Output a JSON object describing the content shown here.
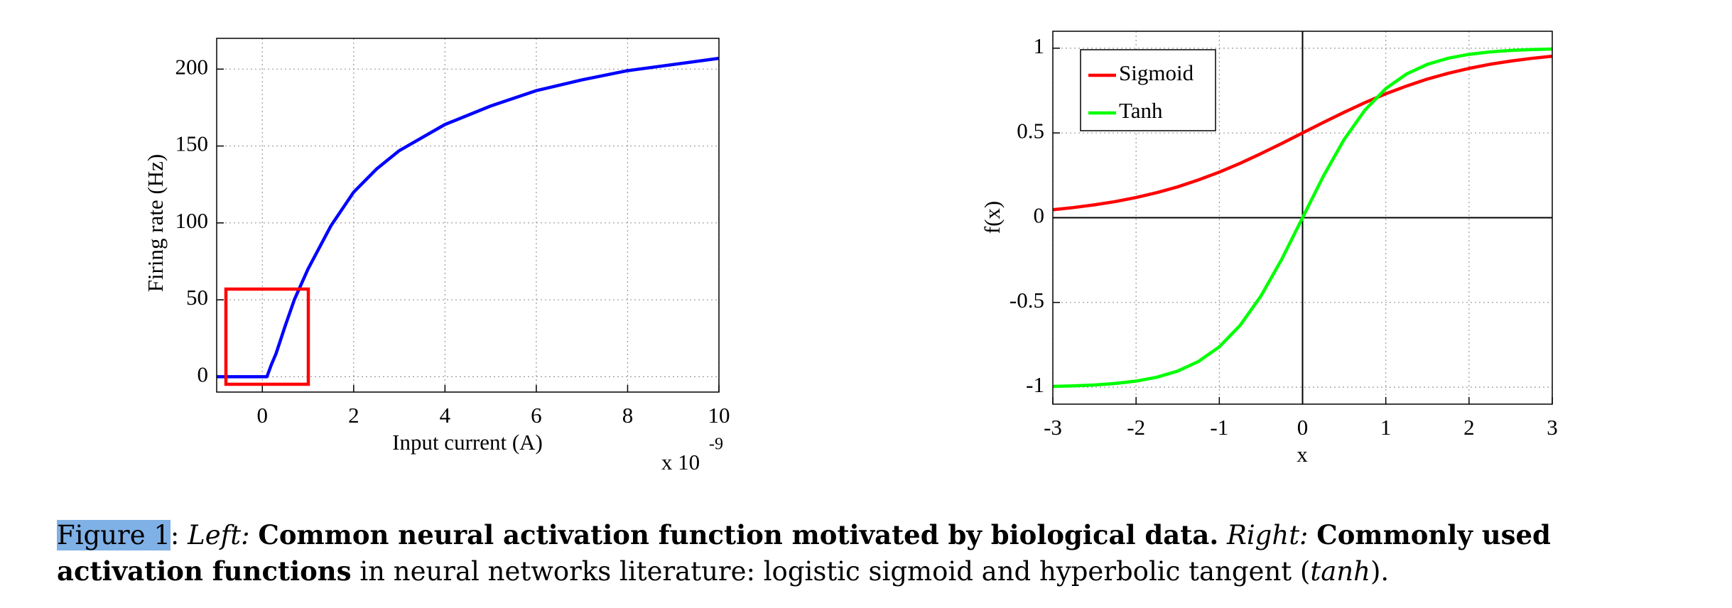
{
  "chart_data": [
    {
      "type": "line",
      "ylabel": "Firing rate (Hz)",
      "xlabel": "Input current (A)",
      "x_multiplier": "x 10",
      "x_exponent": "-9",
      "x": [
        -1,
        -0.5,
        0,
        0.1,
        0.2,
        0.3,
        0.5,
        0.7,
        1,
        1.5,
        2,
        2.5,
        3,
        4,
        5,
        6,
        7,
        8,
        9,
        10
      ],
      "values": [
        0,
        0,
        0,
        0,
        8,
        15,
        33,
        50,
        70,
        98,
        120,
        135,
        147,
        164,
        176,
        186,
        193,
        199,
        203,
        207
      ],
      "color": "#0000ff",
      "xlim": [
        -1,
        10
      ],
      "xticks": [
        0,
        2,
        4,
        6,
        8,
        10
      ],
      "ylim": [
        -10,
        220
      ],
      "yticks": [
        0,
        50,
        100,
        150,
        200
      ],
      "grid": true
    },
    {
      "type": "line",
      "ylabel": "f(x)",
      "xlabel": "x",
      "x": [
        -3,
        -2.75,
        -2.5,
        -2.25,
        -2,
        -1.75,
        -1.5,
        -1.25,
        -1,
        -0.75,
        -0.5,
        -0.25,
        0,
        0.25,
        0.5,
        0.75,
        1,
        1.25,
        1.5,
        1.75,
        2,
        2.25,
        2.5,
        2.75,
        3
      ],
      "series": [
        {
          "name": "Sigmoid",
          "color": "#ff0000",
          "values": [
            0.047,
            0.06,
            0.076,
            0.095,
            0.119,
            0.148,
            0.182,
            0.223,
            0.269,
            0.321,
            0.378,
            0.438,
            0.5,
            0.562,
            0.622,
            0.679,
            0.731,
            0.777,
            0.818,
            0.852,
            0.881,
            0.905,
            0.924,
            0.94,
            0.953
          ]
        },
        {
          "name": "Tanh",
          "color": "#00ff00",
          "values": [
            -0.995,
            -0.992,
            -0.987,
            -0.978,
            -0.964,
            -0.941,
            -0.905,
            -0.848,
            -0.762,
            -0.635,
            -0.462,
            -0.245,
            0,
            0.245,
            0.462,
            0.635,
            0.762,
            0.848,
            0.905,
            0.941,
            0.964,
            0.978,
            0.987,
            0.992,
            0.995
          ]
        }
      ],
      "xlim": [
        -3,
        3
      ],
      "xticks": [
        -3,
        -2,
        -1,
        0,
        1,
        2,
        3
      ],
      "ylim": [
        -1.1,
        1.1
      ],
      "yticks": [
        -1,
        -0.5,
        0,
        0.5,
        1
      ],
      "grid": true,
      "zero_lines": true,
      "legend": "upper left"
    }
  ],
  "caption": {
    "parts": [
      "Figure 1",
      ":",
      "Left:",
      "Common neural activation function motivated by biological data.",
      "Right:",
      "Commonly used activation functions",
      "in neural networks literature: logistic sigmoid and hyperbolic tangent (",
      "tanh",
      ")."
    ]
  }
}
